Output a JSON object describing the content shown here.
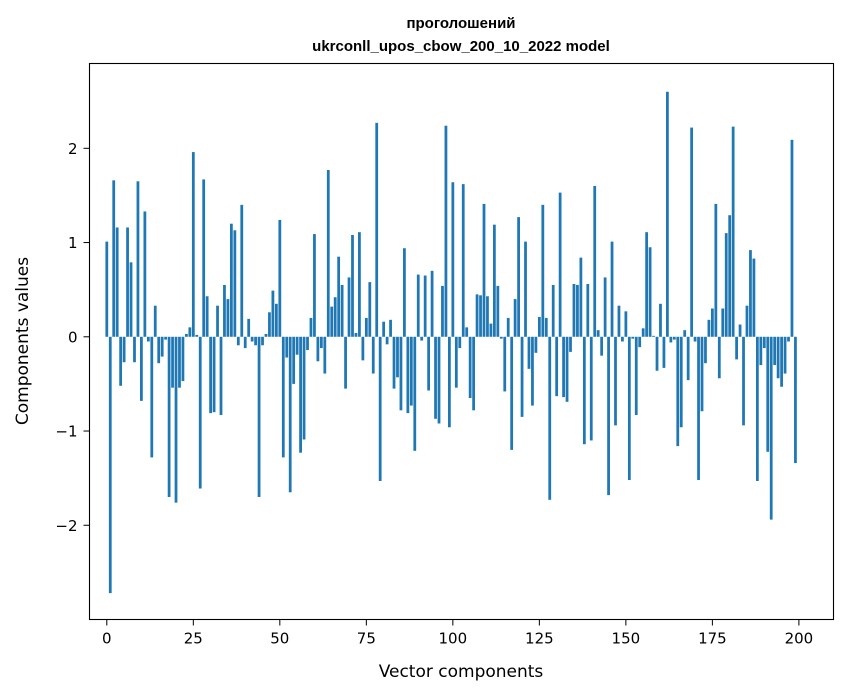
{
  "chart_data": {
    "type": "bar",
    "title_line1": "проголошений",
    "title_line2": "ukrconll_upos_cbow_200_10_2022 model",
    "xlabel": "Vector components",
    "ylabel": "Components values",
    "xlim": [
      -5,
      210
    ],
    "ylim": [
      -3.0,
      2.9
    ],
    "xticks": [
      0,
      25,
      50,
      75,
      100,
      125,
      150,
      175,
      200
    ],
    "xtick_labels": [
      "0",
      "25",
      "50",
      "75",
      "100",
      "125",
      "150",
      "175",
      "200"
    ],
    "yticks": [
      -2,
      -1,
      0,
      1,
      2
    ],
    "ytick_labels": [
      "−2",
      "−1",
      "0",
      "1",
      "2"
    ],
    "grid": false,
    "bar_color": "#1f77b4",
    "x": [
      0,
      1,
      2,
      3,
      4,
      5,
      6,
      7,
      8,
      9,
      10,
      11,
      12,
      13,
      14,
      15,
      16,
      17,
      18,
      19,
      20,
      21,
      22,
      23,
      24,
      25,
      26,
      27,
      28,
      29,
      30,
      31,
      32,
      33,
      34,
      35,
      36,
      37,
      38,
      39,
      40,
      41,
      42,
      43,
      44,
      45,
      46,
      47,
      48,
      49,
      50,
      51,
      52,
      53,
      54,
      55,
      56,
      57,
      58,
      59,
      60,
      61,
      62,
      63,
      64,
      65,
      66,
      67,
      68,
      69,
      70,
      71,
      72,
      73,
      74,
      75,
      76,
      77,
      78,
      79,
      80,
      81,
      82,
      83,
      84,
      85,
      86,
      87,
      88,
      89,
      90,
      91,
      92,
      93,
      94,
      95,
      96,
      97,
      98,
      99,
      100,
      101,
      102,
      103,
      104,
      105,
      106,
      107,
      108,
      109,
      110,
      111,
      112,
      113,
      114,
      115,
      116,
      117,
      118,
      119,
      120,
      121,
      122,
      123,
      124,
      125,
      126,
      127,
      128,
      129,
      130,
      131,
      132,
      133,
      134,
      135,
      136,
      137,
      138,
      139,
      140,
      141,
      142,
      143,
      144,
      145,
      146,
      147,
      148,
      149,
      150,
      151,
      152,
      153,
      154,
      155,
      156,
      157,
      158,
      159,
      160,
      161,
      162,
      163,
      164,
      165,
      166,
      167,
      168,
      169,
      170,
      171,
      172,
      173,
      174,
      175,
      176,
      177,
      178,
      179,
      180,
      181,
      182,
      183,
      184,
      185,
      186,
      187,
      188,
      189,
      190,
      191,
      192,
      193,
      194,
      195,
      196,
      197,
      198,
      199
    ],
    "values": [
      1.01,
      -2.72,
      1.66,
      1.16,
      -0.52,
      -0.27,
      1.16,
      0.79,
      -0.27,
      1.65,
      -0.68,
      1.33,
      -0.05,
      -1.28,
      0.33,
      -0.28,
      -0.21,
      -0.03,
      -1.7,
      -0.54,
      -1.76,
      -0.54,
      -0.47,
      0.03,
      0.1,
      1.96,
      0.02,
      -1.61,
      1.67,
      0.43,
      -0.81,
      -0.8,
      0.33,
      -0.83,
      0.55,
      0.4,
      1.2,
      1.13,
      -0.09,
      1.4,
      -0.12,
      0.19,
      -0.05,
      -0.09,
      -1.7,
      -0.09,
      0.03,
      0.26,
      0.49,
      0.35,
      1.24,
      -1.28,
      -0.22,
      -1.65,
      -0.5,
      -0.19,
      -1.23,
      -1.09,
      -0.14,
      0.2,
      1.09,
      -0.26,
      -0.12,
      -0.39,
      1.77,
      0.32,
      0.42,
      0.85,
      0.55,
      -0.55,
      0.63,
      1.08,
      0.04,
      1.11,
      -0.25,
      0.2,
      0.58,
      -0.39,
      2.27,
      -1.53,
      0.16,
      -0.08,
      0.18,
      -0.55,
      -0.43,
      -0.78,
      0.94,
      -0.81,
      -0.73,
      -1.21,
      0.66,
      -0.04,
      0.65,
      -0.57,
      0.7,
      -0.87,
      -0.92,
      0.54,
      2.24,
      -0.96,
      1.64,
      -0.54,
      -0.12,
      1.62,
      0.1,
      -0.65,
      -0.78,
      0.45,
      0.44,
      1.41,
      0.43,
      0.14,
      1.19,
      0.54,
      -0.02,
      -0.58,
      0.2,
      -1.2,
      0.4,
      1.27,
      -0.85,
      1.01,
      -0.34,
      -0.73,
      -0.17,
      0.21,
      1.4,
      0.2,
      -1.73,
      0.55,
      -0.63,
      1.53,
      -0.64,
      -0.69,
      -0.16,
      0.56,
      0.55,
      0.84,
      -1.14,
      0.56,
      -1.1,
      1.6,
      0.07,
      -0.2,
      0.63,
      -1.68,
      1.01,
      -0.94,
      0.33,
      -0.05,
      0.27,
      -1.52,
      -0.02,
      -0.83,
      -0.11,
      0.09,
      1.11,
      0.95,
      0.01,
      -0.36,
      0.35,
      -0.33,
      2.6,
      -0.06,
      -0.03,
      -1.16,
      -0.96,
      0.07,
      -0.46,
      2.22,
      -0.05,
      -1.52,
      -0.79,
      -0.28,
      0.18,
      0.3,
      1.41,
      -0.44,
      0.3,
      1.1,
      1.29,
      2.23,
      -0.24,
      0.13,
      -0.94,
      0.33,
      0.92,
      0.83,
      -1.53,
      -0.3,
      -0.12,
      -1.22,
      -1.94,
      -0.3,
      -0.44,
      -0.53,
      -0.39,
      -0.05,
      2.09,
      -1.34
    ]
  }
}
